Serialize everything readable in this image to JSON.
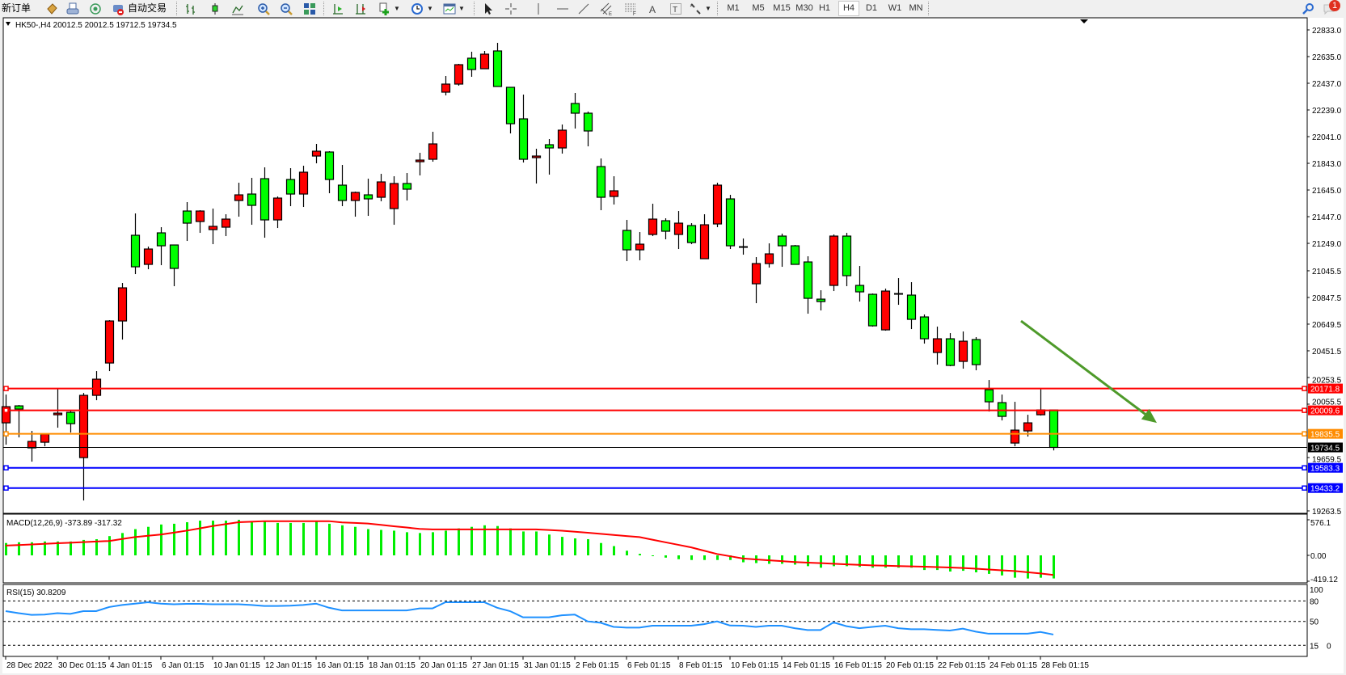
{
  "toolbar": {
    "new_order_label": "新订单",
    "auto_trading_label": "自动交易",
    "timeframes": [
      "M1",
      "M5",
      "M15",
      "M30",
      "H1",
      "H4",
      "D1",
      "W1",
      "MN"
    ],
    "selected_timeframe": "H4",
    "notification_count": "1",
    "icons": [
      "new-order-icon",
      "history-icon",
      "print-icon",
      "signal-icon",
      "auto-trading-icon",
      "bar-chart-icon",
      "candlestick-icon",
      "line-chart-icon",
      "zoom-in-icon",
      "zoom-out-icon",
      "tile-windows-icon",
      "chart-shift-icon",
      "autoscroll-icon",
      "indicators-icon",
      "periods-icon",
      "templates-icon",
      "cursor-icon",
      "crosshair-icon",
      "vertical-line-icon",
      "horizontal-line-icon",
      "trendline-icon",
      "equidistant-channel-icon",
      "fibonacci-icon",
      "text-icon",
      "text-label-icon",
      "arrows-icon",
      "search-icon",
      "notification-icon"
    ]
  },
  "chart_header": "HK50-,H4  20012.5 20012.5 19712.5 19734.5",
  "colors": {
    "bull": "#ff0000",
    "bear": "#00ff00",
    "macd_hist": "#00ee00",
    "signal": "#ff0000",
    "rsi": "#1e90ff",
    "arrow": "#4e9a2a",
    "resistance": "#ff0000",
    "pivot": "#ff8c00",
    "support": "#0000ff",
    "bid": "#000000"
  },
  "chart_data": {
    "type": "candlestick",
    "symbol": "HK50-",
    "timeframe": "H4",
    "up_color": "red",
    "down_color": "green",
    "price_ticks": [
      "22833.0",
      "22635.0",
      "22437.0",
      "22239.0",
      "22041.0",
      "21843.0",
      "21645.0",
      "21447.0",
      "21249.0",
      "21045.5",
      "20847.5",
      "20649.5",
      "20451.5",
      "20253.5",
      "20055.5",
      "19659.5",
      "19263.5"
    ],
    "ylim": [
      19263.5,
      22833.0
    ],
    "date_labels": [
      {
        "index": 0,
        "label": "28 Dec 2022"
      },
      {
        "index": 4,
        "label": "30 Dec 01:15"
      },
      {
        "index": 8,
        "label": "4 Jan 01:15"
      },
      {
        "index": 12,
        "label": "6 Jan 01:15"
      },
      {
        "index": 16,
        "label": "10 Jan 01:15"
      },
      {
        "index": 20,
        "label": "12 Jan 01:15"
      },
      {
        "index": 24,
        "label": "16 Jan 01:15"
      },
      {
        "index": 28,
        "label": "18 Jan 01:15"
      },
      {
        "index": 32,
        "label": "20 Jan 01:15"
      },
      {
        "index": 36,
        "label": "27 Jan 01:15"
      },
      {
        "index": 40,
        "label": "31 Jan 01:15"
      },
      {
        "index": 44,
        "label": "2 Feb 01:15"
      },
      {
        "index": 48,
        "label": "6 Feb 01:15"
      },
      {
        "index": 52,
        "label": "8 Feb 01:15"
      },
      {
        "index": 56,
        "label": "10 Feb 01:15"
      },
      {
        "index": 60,
        "label": "14 Feb 01:15"
      },
      {
        "index": 64,
        "label": "16 Feb 01:15"
      },
      {
        "index": 68,
        "label": "20 Feb 01:15"
      },
      {
        "index": 72,
        "label": "22 Feb 01:15"
      },
      {
        "index": 76,
        "label": "24 Feb 01:15"
      },
      {
        "index": 80,
        "label": "28 Feb 01:15"
      }
    ],
    "ohlc": [
      [
        19917,
        20127,
        19755,
        20037
      ],
      [
        20043,
        20049,
        19809,
        20019
      ],
      [
        19731,
        19857,
        19629,
        19779
      ],
      [
        19773,
        19833,
        19743,
        19833
      ],
      [
        19977,
        20169,
        19881,
        19989
      ],
      [
        19995,
        20007,
        19845,
        19911
      ],
      [
        19659,
        20139,
        19341,
        20121
      ],
      [
        20121,
        20301,
        20085,
        20241
      ],
      [
        20361,
        20679,
        20301,
        20673
      ],
      [
        20673,
        20955,
        20535,
        20919
      ],
      [
        21309,
        21471,
        21021,
        21075
      ],
      [
        21093,
        21225,
        21057,
        21207
      ],
      [
        21327,
        21369,
        21087,
        21231
      ],
      [
        21237,
        21237,
        20931,
        21063
      ],
      [
        21489,
        21555,
        21267,
        21399
      ],
      [
        21411,
        21495,
        21327,
        21489
      ],
      [
        21351,
        21507,
        21243,
        21375
      ],
      [
        21369,
        21465,
        21303,
        21429
      ],
      [
        21567,
        21699,
        21447,
        21609
      ],
      [
        21615,
        21735,
        21387,
        21531
      ],
      [
        21729,
        21813,
        21291,
        21423
      ],
      [
        21423,
        21597,
        21363,
        21585
      ],
      [
        21723,
        21807,
        21525,
        21615
      ],
      [
        21615,
        21825,
        21519,
        21777
      ],
      [
        21897,
        21987,
        21843,
        21933
      ],
      [
        21927,
        21933,
        21621,
        21723
      ],
      [
        21681,
        21831,
        21525,
        21567
      ],
      [
        21567,
        21633,
        21447,
        21627
      ],
      [
        21609,
        21729,
        21453,
        21579
      ],
      [
        21591,
        21765,
        21561,
        21705
      ],
      [
        21507,
        21747,
        21387,
        21693
      ],
      [
        21693,
        21771,
        21567,
        21651
      ],
      [
        21855,
        21921,
        21753,
        21867
      ],
      [
        21873,
        22077,
        21855,
        21987
      ],
      [
        22371,
        22491,
        22347,
        22431
      ],
      [
        22431,
        22581,
        22419,
        22575
      ],
      [
        22623,
        22671,
        22485,
        22539
      ],
      [
        22545,
        22677,
        22545,
        22653
      ],
      [
        22677,
        22737,
        22413,
        22413
      ],
      [
        22407,
        22407,
        22065,
        22137
      ],
      [
        22173,
        22353,
        21849,
        21873
      ],
      [
        21885,
        21951,
        21693,
        21897
      ],
      [
        21981,
        22023,
        21759,
        21957
      ],
      [
        21957,
        22131,
        21915,
        22089
      ],
      [
        22287,
        22365,
        22101,
        22215
      ],
      [
        22215,
        22227,
        21969,
        22083
      ],
      [
        21819,
        21879,
        21495,
        21591
      ],
      [
        21597,
        21747,
        21537,
        21639
      ],
      [
        21345,
        21423,
        21117,
        21201
      ],
      [
        21201,
        21333,
        21123,
        21243
      ],
      [
        21315,
        21543,
        21303,
        21429
      ],
      [
        21417,
        21435,
        21279,
        21339
      ],
      [
        21315,
        21489,
        21207,
        21399
      ],
      [
        21381,
        21399,
        21243,
        21255
      ],
      [
        21135,
        21465,
        21135,
        21387
      ],
      [
        21393,
        21699,
        21369,
        21681
      ],
      [
        21579,
        21609,
        21207,
        21231
      ],
      [
        21225,
        21285,
        21165,
        21225
      ],
      [
        20949,
        21147,
        20805,
        21099
      ],
      [
        21099,
        21249,
        21069,
        21171
      ],
      [
        21303,
        21321,
        21075,
        21231
      ],
      [
        21231,
        21237,
        21093,
        21093
      ],
      [
        21111,
        21153,
        20727,
        20841
      ],
      [
        20835,
        20901,
        20751,
        20817
      ],
      [
        20937,
        21315,
        20895,
        21303
      ],
      [
        21303,
        21327,
        20931,
        21009
      ],
      [
        20937,
        21081,
        20817,
        20889
      ],
      [
        20871,
        20877,
        20631,
        20637
      ],
      [
        20607,
        20913,
        20601,
        20895
      ],
      [
        20877,
        20991,
        20793,
        20877
      ],
      [
        20865,
        20961,
        20613,
        20685
      ],
      [
        20703,
        20721,
        20505,
        20541
      ],
      [
        20439,
        20631,
        20349,
        20541
      ],
      [
        20541,
        20583,
        20337,
        20343
      ],
      [
        20373,
        20595,
        20319,
        20523
      ],
      [
        20535,
        20553,
        20307,
        20349
      ],
      [
        20163,
        20235,
        20001,
        20073
      ],
      [
        20067,
        20127,
        19935,
        19965
      ],
      [
        19767,
        20073,
        19743,
        19863
      ],
      [
        19857,
        19977,
        19815,
        19917
      ],
      [
        19977,
        20169,
        19971,
        20013
      ],
      [
        20012.5,
        20012.5,
        19712.5,
        19734.5
      ]
    ],
    "levels": [
      {
        "price": 20171.8,
        "label": "20171.8",
        "kind": "resistance"
      },
      {
        "price": 20009.6,
        "label": "20009.6",
        "kind": "resistance"
      },
      {
        "price": 19835.5,
        "label": "19835.5",
        "kind": "pivot"
      },
      {
        "price": 19734.5,
        "label": "19734.5",
        "kind": "bid"
      },
      {
        "price": 19583.3,
        "label": "19583.3",
        "kind": "support"
      },
      {
        "price": 19433.2,
        "label": "19433.2",
        "kind": "support"
      }
    ],
    "arrow": {
      "from": {
        "index": 78.5,
        "price": 20673
      },
      "to": {
        "index": 89,
        "price": 19917
      }
    },
    "macd": {
      "title": "MACD(12,26,9) -373.89 -317.32",
      "ticks": [
        "576.1",
        "0.00",
        "-419.12"
      ],
      "ylim": [
        -419.12,
        576.1
      ],
      "histogram": [
        200,
        212,
        212,
        225,
        225,
        225,
        250,
        262,
        312,
        362,
        425,
        462,
        500,
        512,
        537,
        562,
        562,
        562,
        575,
        550,
        550,
        525,
        525,
        525,
        550,
        512,
        487,
        462,
        425,
        412,
        400,
        375,
        362,
        375,
        400,
        437,
        462,
        487,
        475,
        437,
        387,
        387,
        337,
        300,
        275,
        262,
        200,
        150,
        75,
        25,
        -5,
        -37,
        -62,
        -75,
        -75,
        -75,
        -75,
        -112,
        -125,
        -137,
        -137,
        -150,
        -175,
        -200,
        -175,
        -175,
        -187,
        -200,
        -200,
        -200,
        -200,
        -237,
        -237,
        -262,
        -250,
        -275,
        -300,
        -325,
        -362,
        -375,
        -362,
        -373.89
      ],
      "signal": [
        158,
        167,
        177,
        186,
        196,
        205,
        214,
        224,
        233,
        265,
        296,
        317,
        337,
        368,
        400,
        437,
        475,
        506,
        537,
        545,
        554,
        554,
        554,
        554,
        554,
        554,
        533,
        525,
        516,
        494,
        472,
        451,
        429,
        421,
        421,
        421,
        421,
        421,
        421,
        421,
        421,
        421,
        410,
        400,
        383,
        366,
        349,
        330,
        313,
        296,
        254,
        212,
        171,
        129,
        75,
        22,
        -14,
        -50,
        -65,
        -80,
        -94,
        -108,
        -118,
        -126,
        -136,
        -145,
        -154,
        -162,
        -167,
        -173,
        -178,
        -183,
        -190,
        -197,
        -204,
        -216,
        -229,
        -242,
        -254,
        -273,
        -293,
        -317.32
      ]
    },
    "rsi": {
      "title": "RSI(15) 30.8209",
      "ticks": [
        "100",
        "80",
        "50",
        "15",
        "0"
      ],
      "levels": [
        80,
        50,
        15
      ],
      "ylim": [
        0,
        100
      ],
      "values": [
        65,
        62,
        59.5,
        60,
        62,
        61,
        65,
        65,
        71,
        74,
        76,
        78,
        76,
        75,
        75.6,
        75.6,
        75,
        75,
        75,
        74,
        72.6,
        72.6,
        73,
        74,
        76,
        70,
        66,
        66,
        66,
        66,
        66,
        66,
        69,
        69,
        78,
        78,
        78,
        78,
        70,
        65,
        56,
        56,
        56,
        59,
        60,
        50,
        48,
        42,
        41,
        41,
        43.7,
        43.7,
        43.7,
        43.7,
        46,
        50,
        44,
        43.7,
        42,
        43.7,
        43.7,
        40,
        37.4,
        37.4,
        48.5,
        43,
        40,
        42,
        43.7,
        40,
        38.6,
        38.6,
        37.5,
        36.6,
        39.4,
        35,
        32,
        32,
        32,
        32,
        34.6,
        30.8209
      ]
    }
  }
}
